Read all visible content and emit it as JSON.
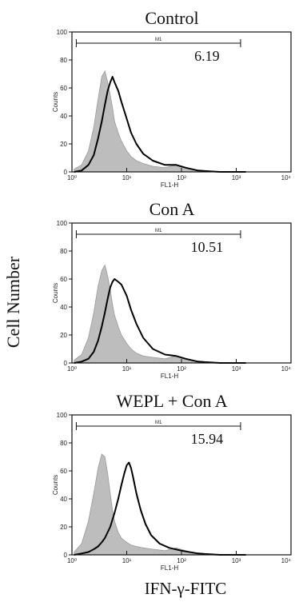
{
  "figure": {
    "ylabel": "Cell Number",
    "xlabel": "IFN-γ-FITC"
  },
  "chart_data": [
    {
      "type": "area",
      "title": "Control",
      "xlabel": "FL1-H",
      "ylabel": "Counts",
      "xscale": "log",
      "xlim": [
        1,
        10000
      ],
      "ylim": [
        0,
        100
      ],
      "xticks": [
        {
          "v": 1,
          "label": "10⁰"
        },
        {
          "v": 10,
          "label": "10¹"
        },
        {
          "v": 100,
          "label": "10²"
        },
        {
          "v": 1000,
          "label": "10³"
        },
        {
          "v": 10000,
          "label": "10⁴"
        }
      ],
      "yticks": [
        0,
        20,
        40,
        60,
        80,
        100
      ],
      "gate": {
        "label": "M1",
        "from": 1.2,
        "to": 1200,
        "y": 92,
        "value": "6.19"
      },
      "series": [
        {
          "style": "filled-gray",
          "x": [
            1.1,
            1.5,
            2,
            2.5,
            3,
            3.5,
            4,
            4.5,
            5,
            5.5,
            6,
            7,
            8,
            10,
            12,
            15,
            20,
            30,
            50,
            80,
            120,
            200,
            500,
            1500
          ],
          "y": [
            2,
            5,
            15,
            32,
            52,
            68,
            72,
            64,
            55,
            46,
            36,
            28,
            22,
            15,
            11,
            8,
            6,
            4,
            3,
            5,
            3,
            1,
            0,
            0
          ]
        },
        {
          "style": "black-line",
          "x": [
            1.1,
            1.5,
            2,
            2.5,
            3,
            3.5,
            4,
            4.5,
            5,
            5.5,
            6,
            7,
            8,
            10,
            12,
            15,
            20,
            30,
            50,
            80,
            120,
            200,
            500,
            1500
          ],
          "y": [
            0,
            1,
            5,
            12,
            24,
            36,
            48,
            58,
            64,
            68,
            64,
            58,
            50,
            38,
            28,
            20,
            13,
            8,
            5,
            5,
            3,
            1,
            0,
            0
          ]
        }
      ]
    },
    {
      "type": "area",
      "title": "Con A",
      "xlabel": "FL1-H",
      "ylabel": "Counts",
      "xscale": "log",
      "xlim": [
        1,
        10000
      ],
      "ylim": [
        0,
        100
      ],
      "xticks": [
        {
          "v": 1,
          "label": "10⁰"
        },
        {
          "v": 10,
          "label": "10¹"
        },
        {
          "v": 100,
          "label": "10²"
        },
        {
          "v": 1000,
          "label": "10³"
        },
        {
          "v": 10000,
          "label": "10⁴"
        }
      ],
      "yticks": [
        0,
        20,
        40,
        60,
        80,
        100
      ],
      "gate": {
        "label": "M1",
        "from": 1.2,
        "to": 1200,
        "y": 92,
        "value": "10.51"
      },
      "series": [
        {
          "style": "filled-gray",
          "x": [
            1.1,
            1.5,
            2,
            2.5,
            3,
            3.5,
            4,
            4.5,
            5,
            5.5,
            6,
            7,
            8,
            10,
            12,
            15,
            20,
            30,
            50,
            80,
            120,
            200,
            500,
            1500
          ],
          "y": [
            2,
            6,
            18,
            36,
            55,
            66,
            70,
            62,
            52,
            42,
            34,
            26,
            20,
            14,
            10,
            7,
            5,
            4,
            3,
            5,
            3,
            1,
            0,
            0
          ]
        },
        {
          "style": "black-line",
          "x": [
            1.1,
            1.5,
            2,
            2.5,
            3,
            3.5,
            4,
            4.5,
            5,
            5.5,
            6,
            7,
            8,
            10,
            12,
            15,
            20,
            30,
            50,
            80,
            120,
            200,
            500,
            1500
          ],
          "y": [
            0,
            1,
            3,
            8,
            16,
            26,
            36,
            46,
            54,
            58,
            60,
            58,
            56,
            48,
            38,
            28,
            18,
            10,
            6,
            5,
            3,
            1,
            0,
            0
          ]
        }
      ]
    },
    {
      "type": "area",
      "title": "WEPL + Con A",
      "xlabel": "FL1-H",
      "ylabel": "Counts",
      "xscale": "log",
      "xlim": [
        1,
        10000
      ],
      "ylim": [
        0,
        100
      ],
      "xticks": [
        {
          "v": 1,
          "label": "10⁰"
        },
        {
          "v": 10,
          "label": "10¹"
        },
        {
          "v": 100,
          "label": "10²"
        },
        {
          "v": 1000,
          "label": "10³"
        },
        {
          "v": 10000,
          "label": "10⁴"
        }
      ],
      "yticks": [
        0,
        20,
        40,
        60,
        80,
        100
      ],
      "gate": {
        "label": "M1",
        "from": 1.2,
        "to": 1200,
        "y": 92,
        "value": "15.94"
      },
      "series": [
        {
          "style": "filled-gray",
          "x": [
            1.1,
            1.5,
            2,
            2.5,
            3,
            3.5,
            4,
            4.5,
            5,
            5.5,
            6,
            7,
            8,
            10,
            12,
            15,
            20,
            30,
            50,
            80,
            120,
            200,
            500,
            1500
          ],
          "y": [
            2,
            8,
            24,
            44,
            62,
            72,
            70,
            58,
            44,
            32,
            24,
            16,
            12,
            9,
            7,
            6,
            5,
            4,
            3,
            5,
            3,
            1,
            0,
            0
          ]
        },
        {
          "style": "black-line",
          "x": [
            1.1,
            1.5,
            2,
            2.5,
            3,
            3.5,
            4,
            5,
            6,
            7,
            8,
            9,
            10,
            11,
            12,
            13,
            15,
            18,
            22,
            28,
            40,
            60,
            100,
            200,
            500,
            1500
          ],
          "y": [
            0,
            1,
            2,
            4,
            6,
            9,
            12,
            20,
            30,
            40,
            50,
            58,
            64,
            66,
            62,
            56,
            44,
            32,
            22,
            14,
            8,
            5,
            3,
            1,
            0,
            0
          ]
        }
      ]
    }
  ]
}
